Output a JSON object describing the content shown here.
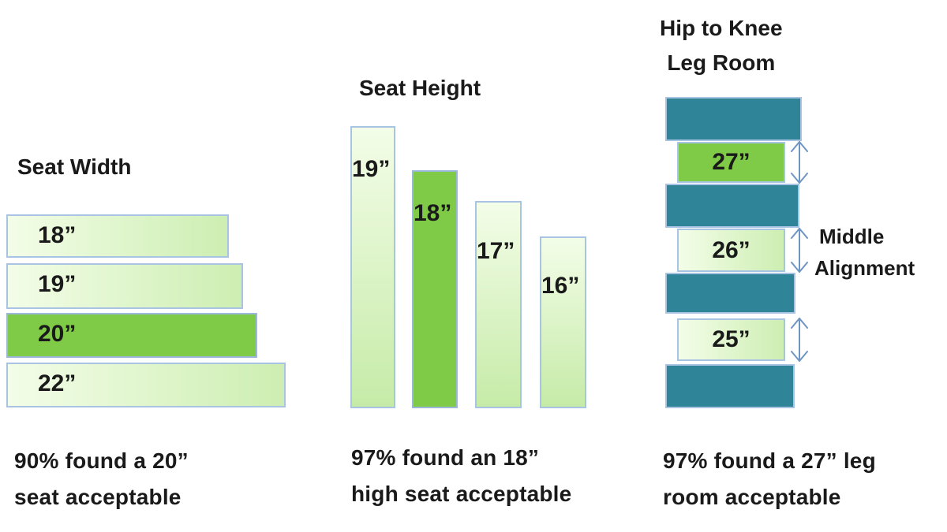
{
  "seat_width": {
    "title": "Seat Width",
    "bars": [
      {
        "label": "18”",
        "value": 18,
        "highlight": false
      },
      {
        "label": "19”",
        "value": 19,
        "highlight": false
      },
      {
        "label": "20”",
        "value": 20,
        "highlight": true
      },
      {
        "label": "22”",
        "value": 22,
        "highlight": false
      }
    ],
    "caption": [
      "90% found a 20”",
      "seat acceptable"
    ]
  },
  "seat_height": {
    "title": "Seat Height",
    "bars": [
      {
        "label": "19”",
        "value": 19,
        "highlight": false
      },
      {
        "label": "18”",
        "value": 18,
        "highlight": true
      },
      {
        "label": "17”",
        "value": 17,
        "highlight": false
      },
      {
        "label": "16”",
        "value": 16,
        "highlight": false
      }
    ],
    "caption": [
      "97% found an 18”",
      "high seat acceptable"
    ]
  },
  "leg_room": {
    "title_lines": [
      "Hip to Knee",
      "Leg Room"
    ],
    "gaps": [
      {
        "label": "27”",
        "value": 27,
        "highlight": true
      },
      {
        "label": "26”",
        "value": 26,
        "highlight": false
      },
      {
        "label": "25”",
        "value": 25,
        "highlight": false
      }
    ],
    "annotation": [
      "Middle",
      "Alignment"
    ],
    "caption": [
      "97% found a 27” leg",
      "room acceptable"
    ]
  },
  "colors": {
    "highlight": "#7fcb47",
    "slab": "#2f8597",
    "outline": "#a9c3e2",
    "arrow": "#6f95c4"
  }
}
